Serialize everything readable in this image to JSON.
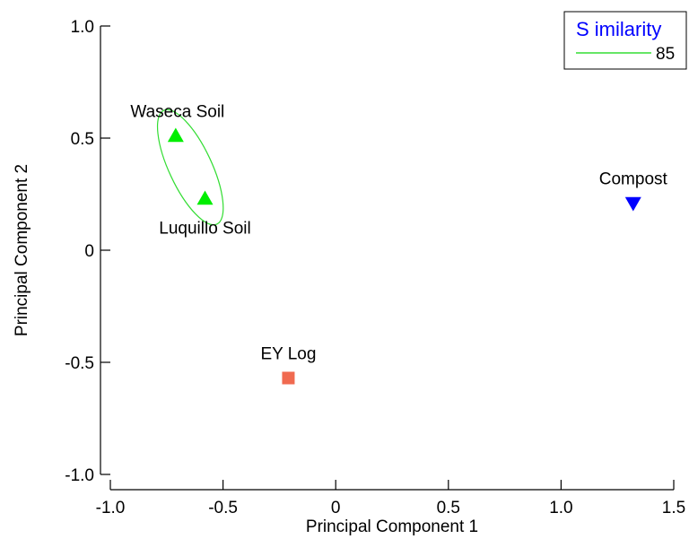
{
  "chart_data": {
    "type": "scatter",
    "xlabel": "Principal Component 1",
    "ylabel": "Principal Component 2",
    "xlim": [
      -1.0,
      1.5
    ],
    "ylim": [
      -1.0,
      1.0
    ],
    "xticks": [
      -1.0,
      -0.5,
      0,
      0.5,
      1.0,
      1.5
    ],
    "xtick_labels": [
      "-1.0",
      "-0.5",
      "0",
      "0.5",
      "1.0",
      "1.5"
    ],
    "yticks": [
      -1.0,
      -0.5,
      0,
      0.5,
      1.0
    ],
    "ytick_labels": [
      "-1.0",
      "-0.5",
      "0",
      "0.5",
      "1.0"
    ],
    "grid": false,
    "points": [
      {
        "label": "Waseca Soil",
        "x": -0.71,
        "y": 0.51,
        "marker": "triangle-up",
        "color": "#00ee00",
        "label_pos": "above"
      },
      {
        "label": "Luquillo Soil",
        "x": -0.58,
        "y": 0.23,
        "marker": "triangle-up",
        "color": "#00ee00",
        "label_pos": "below"
      },
      {
        "label": "Compost",
        "x": 1.32,
        "y": 0.21,
        "marker": "triangle-down",
        "color": "#0000ff",
        "label_pos": "above"
      },
      {
        "label": "EY Log",
        "x": -0.21,
        "y": -0.57,
        "marker": "square",
        "color": "#f06a50",
        "label_pos": "above"
      }
    ],
    "similarity_ellipse": {
      "center": [
        -0.645,
        0.37
      ],
      "semi_axis_major": 0.2,
      "semi_axis_minor": 0.068,
      "color": "#33dd33"
    },
    "legend": {
      "title": "S imilarity",
      "title_color": "#0000ff",
      "entry_label": "85",
      "entry_color": "#33dd33",
      "placement": "top-right"
    }
  }
}
